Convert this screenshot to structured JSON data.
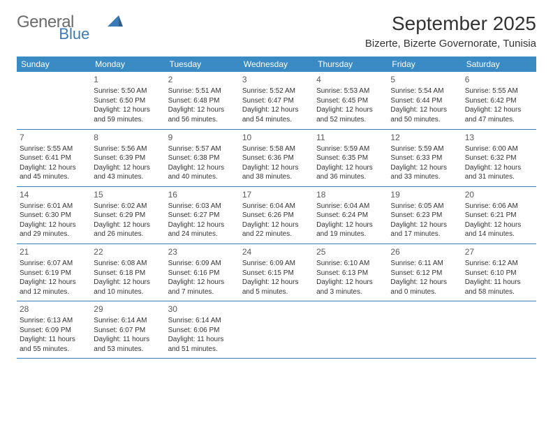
{
  "logo": {
    "main": "General",
    "sub": "Blue"
  },
  "title": "September 2025",
  "location": "Bizerte, Bizerte Governorate, Tunisia",
  "colors": {
    "header_bg": "#3a8ac4",
    "header_text": "#ffffff",
    "border": "#3a7ab8",
    "logo_main": "#6b6b6b",
    "logo_sub": "#3a7ab8",
    "text": "#333333"
  },
  "weekdays": [
    "Sunday",
    "Monday",
    "Tuesday",
    "Wednesday",
    "Thursday",
    "Friday",
    "Saturday"
  ],
  "weeks": [
    [
      null,
      {
        "n": "1",
        "sr": "5:50 AM",
        "ss": "6:50 PM",
        "dl1": "Daylight: 12 hours",
        "dl2": "and 59 minutes."
      },
      {
        "n": "2",
        "sr": "5:51 AM",
        "ss": "6:48 PM",
        "dl1": "Daylight: 12 hours",
        "dl2": "and 56 minutes."
      },
      {
        "n": "3",
        "sr": "5:52 AM",
        "ss": "6:47 PM",
        "dl1": "Daylight: 12 hours",
        "dl2": "and 54 minutes."
      },
      {
        "n": "4",
        "sr": "5:53 AM",
        "ss": "6:45 PM",
        "dl1": "Daylight: 12 hours",
        "dl2": "and 52 minutes."
      },
      {
        "n": "5",
        "sr": "5:54 AM",
        "ss": "6:44 PM",
        "dl1": "Daylight: 12 hours",
        "dl2": "and 50 minutes."
      },
      {
        "n": "6",
        "sr": "5:55 AM",
        "ss": "6:42 PM",
        "dl1": "Daylight: 12 hours",
        "dl2": "and 47 minutes."
      }
    ],
    [
      {
        "n": "7",
        "sr": "5:55 AM",
        "ss": "6:41 PM",
        "dl1": "Daylight: 12 hours",
        "dl2": "and 45 minutes."
      },
      {
        "n": "8",
        "sr": "5:56 AM",
        "ss": "6:39 PM",
        "dl1": "Daylight: 12 hours",
        "dl2": "and 43 minutes."
      },
      {
        "n": "9",
        "sr": "5:57 AM",
        "ss": "6:38 PM",
        "dl1": "Daylight: 12 hours",
        "dl2": "and 40 minutes."
      },
      {
        "n": "10",
        "sr": "5:58 AM",
        "ss": "6:36 PM",
        "dl1": "Daylight: 12 hours",
        "dl2": "and 38 minutes."
      },
      {
        "n": "11",
        "sr": "5:59 AM",
        "ss": "6:35 PM",
        "dl1": "Daylight: 12 hours",
        "dl2": "and 36 minutes."
      },
      {
        "n": "12",
        "sr": "5:59 AM",
        "ss": "6:33 PM",
        "dl1": "Daylight: 12 hours",
        "dl2": "and 33 minutes."
      },
      {
        "n": "13",
        "sr": "6:00 AM",
        "ss": "6:32 PM",
        "dl1": "Daylight: 12 hours",
        "dl2": "and 31 minutes."
      }
    ],
    [
      {
        "n": "14",
        "sr": "6:01 AM",
        "ss": "6:30 PM",
        "dl1": "Daylight: 12 hours",
        "dl2": "and 29 minutes."
      },
      {
        "n": "15",
        "sr": "6:02 AM",
        "ss": "6:29 PM",
        "dl1": "Daylight: 12 hours",
        "dl2": "and 26 minutes."
      },
      {
        "n": "16",
        "sr": "6:03 AM",
        "ss": "6:27 PM",
        "dl1": "Daylight: 12 hours",
        "dl2": "and 24 minutes."
      },
      {
        "n": "17",
        "sr": "6:04 AM",
        "ss": "6:26 PM",
        "dl1": "Daylight: 12 hours",
        "dl2": "and 22 minutes."
      },
      {
        "n": "18",
        "sr": "6:04 AM",
        "ss": "6:24 PM",
        "dl1": "Daylight: 12 hours",
        "dl2": "and 19 minutes."
      },
      {
        "n": "19",
        "sr": "6:05 AM",
        "ss": "6:23 PM",
        "dl1": "Daylight: 12 hours",
        "dl2": "and 17 minutes."
      },
      {
        "n": "20",
        "sr": "6:06 AM",
        "ss": "6:21 PM",
        "dl1": "Daylight: 12 hours",
        "dl2": "and 14 minutes."
      }
    ],
    [
      {
        "n": "21",
        "sr": "6:07 AM",
        "ss": "6:19 PM",
        "dl1": "Daylight: 12 hours",
        "dl2": "and 12 minutes."
      },
      {
        "n": "22",
        "sr": "6:08 AM",
        "ss": "6:18 PM",
        "dl1": "Daylight: 12 hours",
        "dl2": "and 10 minutes."
      },
      {
        "n": "23",
        "sr": "6:09 AM",
        "ss": "6:16 PM",
        "dl1": "Daylight: 12 hours",
        "dl2": "and 7 minutes."
      },
      {
        "n": "24",
        "sr": "6:09 AM",
        "ss": "6:15 PM",
        "dl1": "Daylight: 12 hours",
        "dl2": "and 5 minutes."
      },
      {
        "n": "25",
        "sr": "6:10 AM",
        "ss": "6:13 PM",
        "dl1": "Daylight: 12 hours",
        "dl2": "and 3 minutes."
      },
      {
        "n": "26",
        "sr": "6:11 AM",
        "ss": "6:12 PM",
        "dl1": "Daylight: 12 hours",
        "dl2": "and 0 minutes."
      },
      {
        "n": "27",
        "sr": "6:12 AM",
        "ss": "6:10 PM",
        "dl1": "Daylight: 11 hours",
        "dl2": "and 58 minutes."
      }
    ],
    [
      {
        "n": "28",
        "sr": "6:13 AM",
        "ss": "6:09 PM",
        "dl1": "Daylight: 11 hours",
        "dl2": "and 55 minutes."
      },
      {
        "n": "29",
        "sr": "6:14 AM",
        "ss": "6:07 PM",
        "dl1": "Daylight: 11 hours",
        "dl2": "and 53 minutes."
      },
      {
        "n": "30",
        "sr": "6:14 AM",
        "ss": "6:06 PM",
        "dl1": "Daylight: 11 hours",
        "dl2": "and 51 minutes."
      },
      null,
      null,
      null,
      null
    ]
  ]
}
